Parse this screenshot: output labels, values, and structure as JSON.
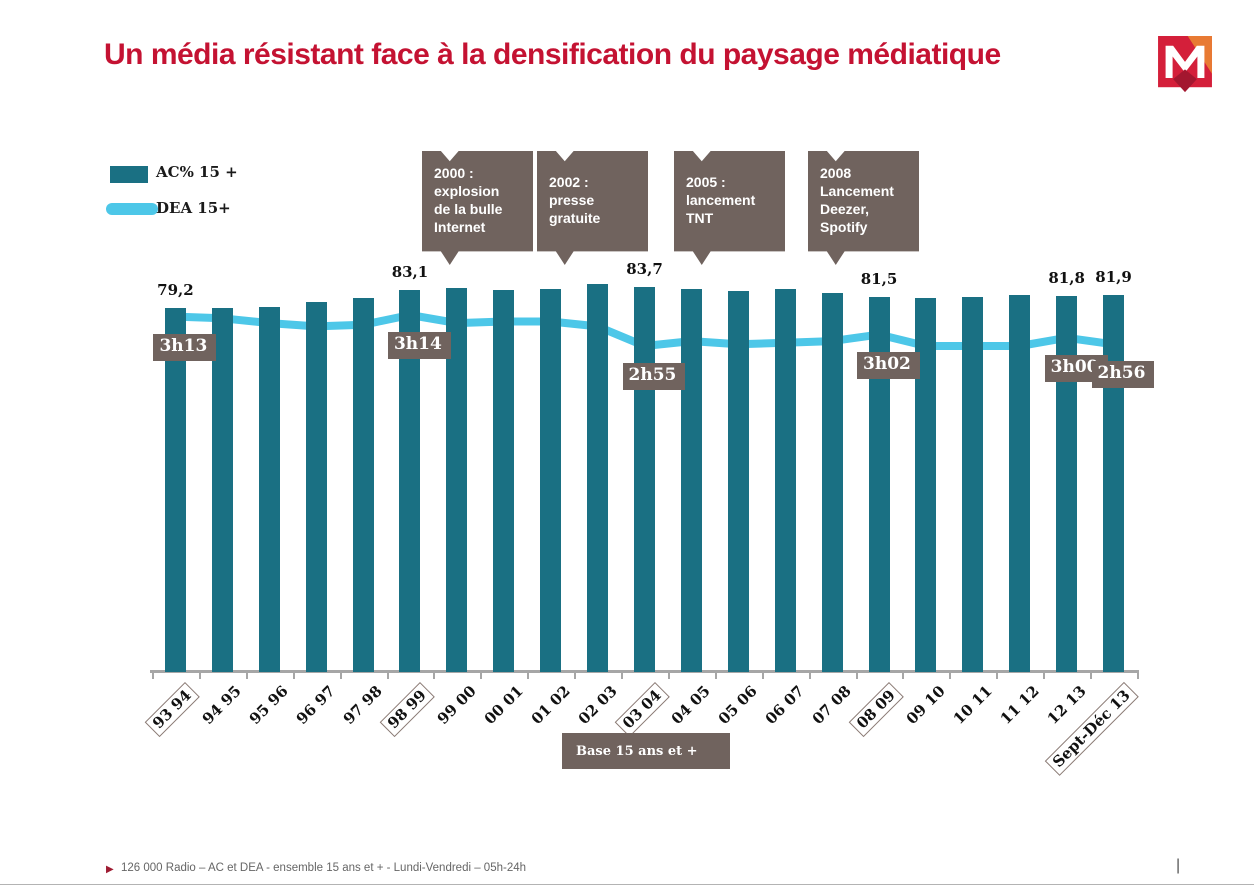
{
  "title": "Un média résistant face à la densification du paysage médiatique",
  "logo_letter": "M",
  "legend": [
    {
      "label": "AC% 15 +",
      "type": "bar"
    },
    {
      "label": "DEA 15+",
      "type": "line"
    }
  ],
  "annotations": [
    {
      "text": "2000 :\nexplosion\nde la bulle\nInternet"
    },
    {
      "text": "2002 :\npresse\ngratuite"
    },
    {
      "text": "2005 :\nlancement\nTNT"
    },
    {
      "text": "2008\nLancement\nDeezer,\nSpotify"
    }
  ],
  "base_note": "Base 15 ans et +",
  "footer": {
    "bullet": "▶",
    "text": "126 000 Radio – AC et DEA - ensemble 15 ans et + - Lundi-Vendredi – 05h-24h",
    "right_mark": "|"
  },
  "colors": {
    "bar": "#1a7083",
    "line": "#4dc7e8",
    "annotation_bg": "#70635e",
    "label_box_bg": "#70635e",
    "title": "#c41232",
    "axis": "#a6a6a6",
    "footer_text": "#666666",
    "logo_red": "#d41f3a",
    "logo_orange": "#e87a33",
    "logo_dark_red": "#a3172f"
  },
  "chart_data": {
    "type": "bar+line",
    "title": "Un média résistant face à la densification du paysage médiatique",
    "categories": [
      "93 94",
      "94 95",
      "95 96",
      "96 97",
      "97 98",
      "98 99",
      "99 00",
      "00 01",
      "01 02",
      "02 03",
      "03 04",
      "04 05",
      "05 06",
      "06 07",
      "07 08",
      "08 09",
      "09 10",
      "10 11",
      "11 12",
      "12 13",
      "Sept-Déc 13"
    ],
    "boxed_categories": [
      "93 94",
      "98 99",
      "03 04",
      "08 09",
      "Sept-Déc 13"
    ],
    "grid": false,
    "legend_position": "top-left",
    "series": [
      {
        "name": "AC% 15 +",
        "type": "bar",
        "unit": "percent",
        "values": [
          79.2,
          79.1,
          79.4,
          80.4,
          81.2,
          83.1,
          83.4,
          83.0,
          83.2,
          84.4,
          83.7,
          83.3,
          82.9,
          83.3,
          82.3,
          81.5,
          81.3,
          81.5,
          82.0,
          81.8,
          81.9
        ],
        "labeled_values_note": "only indices below carry printed labels; other values estimated from bar heights",
        "point_labels": {
          "0": "79,2",
          "5": "83,1",
          "10": "83,7",
          "15": "81,5",
          "19": "81,8",
          "20": "81,9"
        }
      },
      {
        "name": "DEA 15+",
        "type": "line",
        "unit": "minutes",
        "values": [
          193,
          192,
          189,
          187,
          188,
          194,
          189,
          190,
          190,
          187,
          175,
          178,
          176,
          177,
          178,
          182,
          175,
          175,
          175,
          180,
          176
        ],
        "labeled_values_note": "only indices below carry printed labels; other values estimated from line position",
        "point_labels": {
          "0": "3h13",
          "5": "3h14",
          "10": "2h55",
          "15": "3h02",
          "19": "3h00",
          "20": "2h56"
        }
      }
    ]
  }
}
